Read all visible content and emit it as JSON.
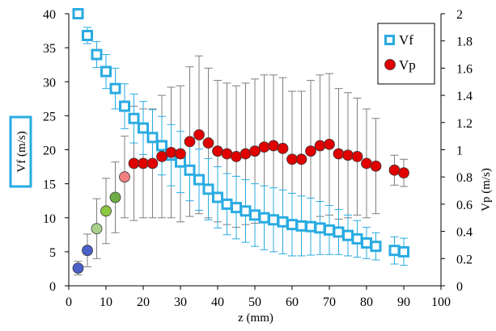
{
  "chart_data": {
    "type": "scatter",
    "title": "",
    "xlabel": "z (mm)",
    "ylabel_left": "Vf (m/s)",
    "ylabel_right": "Vp (m/s)",
    "xlim": [
      0,
      100
    ],
    "ylim_left": [
      0,
      40
    ],
    "ylim_right": [
      0,
      2
    ],
    "x_ticks": [
      0,
      10,
      20,
      30,
      40,
      50,
      60,
      70,
      80,
      90,
      100
    ],
    "y_left_ticks": [
      0,
      5,
      10,
      15,
      20,
      25,
      30,
      35,
      40
    ],
    "y_right_ticks": [
      "0",
      "0.2",
      "0.4",
      "0.6",
      "0.8",
      "1",
      "1.2",
      "1.4",
      "1.6",
      "1.8",
      "2"
    ],
    "grid": false,
    "legend_position": "top-right",
    "colors": {
      "vf": "#29abe2",
      "vp": "#e00000",
      "axis": "#000000",
      "ylabel_box": "#29abe2"
    },
    "series": [
      {
        "name": "Vf",
        "axis": "left",
        "marker": "square",
        "points": [
          {
            "x": 2.5,
            "y": 40.0,
            "err": 0.0
          },
          {
            "x": 5.0,
            "y": 36.8,
            "err": 1.2
          },
          {
            "x": 7.5,
            "y": 34.0,
            "err": 1.9
          },
          {
            "x": 10.0,
            "y": 31.5,
            "err": 2.5
          },
          {
            "x": 12.5,
            "y": 29.0,
            "err": 3.0
          },
          {
            "x": 15.0,
            "y": 26.4,
            "err": 3.3
          },
          {
            "x": 17.5,
            "y": 24.6,
            "err": 3.6
          },
          {
            "x": 20.0,
            "y": 23.2,
            "err": 3.9
          },
          {
            "x": 22.5,
            "y": 21.8,
            "err": 4.1
          },
          {
            "x": 25.0,
            "y": 20.6,
            "err": 4.3
          },
          {
            "x": 27.5,
            "y": 19.2,
            "err": 4.5
          },
          {
            "x": 30.0,
            "y": 18.2,
            "err": 4.5
          },
          {
            "x": 32.5,
            "y": 17.0,
            "err": 4.5
          },
          {
            "x": 35.0,
            "y": 15.6,
            "err": 4.5
          },
          {
            "x": 37.5,
            "y": 14.2,
            "err": 4.5
          },
          {
            "x": 40.0,
            "y": 13.0,
            "err": 4.5
          },
          {
            "x": 42.5,
            "y": 12.0,
            "err": 4.5
          },
          {
            "x": 45.0,
            "y": 11.5,
            "err": 4.6
          },
          {
            "x": 47.5,
            "y": 11.0,
            "err": 4.6
          },
          {
            "x": 50.0,
            "y": 10.4,
            "err": 4.6
          },
          {
            "x": 52.5,
            "y": 10.0,
            "err": 4.7
          },
          {
            "x": 55.0,
            "y": 9.7,
            "err": 4.7
          },
          {
            "x": 57.5,
            "y": 9.4,
            "err": 4.7
          },
          {
            "x": 60.0,
            "y": 9.0,
            "err": 4.6
          },
          {
            "x": 62.5,
            "y": 8.8,
            "err": 4.4
          },
          {
            "x": 65.0,
            "y": 8.7,
            "err": 4.2
          },
          {
            "x": 67.5,
            "y": 8.5,
            "err": 3.9
          },
          {
            "x": 70.0,
            "y": 8.2,
            "err": 3.6
          },
          {
            "x": 72.5,
            "y": 7.9,
            "err": 3.3
          },
          {
            "x": 75.0,
            "y": 7.4,
            "err": 3.0
          },
          {
            "x": 77.5,
            "y": 6.9,
            "err": 2.7
          },
          {
            "x": 80.0,
            "y": 6.3,
            "err": 2.3
          },
          {
            "x": 82.5,
            "y": 5.8,
            "err": 2.0
          },
          {
            "x": 87.5,
            "y": 5.2,
            "err": 2.0
          },
          {
            "x": 90.0,
            "y": 5.0,
            "err": 2.0
          }
        ]
      },
      {
        "name": "Vp",
        "axis": "right",
        "marker": "circle",
        "points": [
          {
            "x": 2.5,
            "y": 0.13,
            "err": 0.05,
            "color": "#4a5fc8"
          },
          {
            "x": 5.0,
            "y": 0.26,
            "err": 0.12,
            "color": "#4a5fc8"
          },
          {
            "x": 7.5,
            "y": 0.42,
            "err": 0.22,
            "color": "#a8d18d"
          },
          {
            "x": 10.0,
            "y": 0.55,
            "err": 0.24,
            "color": "#8dc63f"
          },
          {
            "x": 12.5,
            "y": 0.65,
            "err": 0.26,
            "color": "#70ad47"
          },
          {
            "x": 15.0,
            "y": 0.8,
            "err": 0.3,
            "color": "#f08080"
          },
          {
            "x": 17.5,
            "y": 0.9,
            "err": 0.42,
            "color": "#e00000"
          },
          {
            "x": 20.0,
            "y": 0.9,
            "err": 0.4,
            "color": "#e00000"
          },
          {
            "x": 22.5,
            "y": 0.9,
            "err": 0.4,
            "color": "#e00000"
          },
          {
            "x": 25.0,
            "y": 0.95,
            "err": 0.45,
            "color": "#e00000"
          },
          {
            "x": 27.5,
            "y": 0.98,
            "err": 0.48,
            "color": "#e00000"
          },
          {
            "x": 30.0,
            "y": 0.97,
            "err": 0.5,
            "color": "#e00000"
          },
          {
            "x": 32.5,
            "y": 1.06,
            "err": 0.55,
            "color": "#e00000"
          },
          {
            "x": 35.0,
            "y": 1.11,
            "err": 0.58,
            "color": "#e00000"
          },
          {
            "x": 37.5,
            "y": 1.05,
            "err": 0.55,
            "color": "#e00000"
          },
          {
            "x": 40.0,
            "y": 0.99,
            "err": 0.52,
            "color": "#e00000"
          },
          {
            "x": 42.5,
            "y": 0.97,
            "err": 0.52,
            "color": "#e00000"
          },
          {
            "x": 45.0,
            "y": 0.95,
            "err": 0.52,
            "color": "#e00000"
          },
          {
            "x": 47.5,
            "y": 0.97,
            "err": 0.52,
            "color": "#e00000"
          },
          {
            "x": 50.0,
            "y": 0.99,
            "err": 0.53,
            "color": "#e00000"
          },
          {
            "x": 52.5,
            "y": 1.02,
            "err": 0.53,
            "color": "#e00000"
          },
          {
            "x": 55.0,
            "y": 1.03,
            "err": 0.52,
            "color": "#e00000"
          },
          {
            "x": 57.5,
            "y": 1.01,
            "err": 0.52,
            "color": "#e00000"
          },
          {
            "x": 60.0,
            "y": 0.93,
            "err": 0.5,
            "color": "#e00000"
          },
          {
            "x": 62.5,
            "y": 0.93,
            "err": 0.5,
            "color": "#e00000"
          },
          {
            "x": 65.0,
            "y": 0.99,
            "err": 0.52,
            "color": "#e00000"
          },
          {
            "x": 67.5,
            "y": 1.03,
            "err": 0.52,
            "color": "#e00000"
          },
          {
            "x": 70.0,
            "y": 1.04,
            "err": 0.52,
            "color": "#e00000"
          },
          {
            "x": 72.5,
            "y": 0.97,
            "err": 0.48,
            "color": "#e00000"
          },
          {
            "x": 75.0,
            "y": 0.96,
            "err": 0.46,
            "color": "#e00000"
          },
          {
            "x": 77.5,
            "y": 0.95,
            "err": 0.43,
            "color": "#e00000"
          },
          {
            "x": 80.0,
            "y": 0.9,
            "err": 0.4,
            "color": "#e00000"
          },
          {
            "x": 82.5,
            "y": 0.88,
            "err": 0.35,
            "color": "#e00000"
          },
          {
            "x": 87.5,
            "y": 0.85,
            "err": 0.11,
            "color": "#e00000"
          },
          {
            "x": 90.0,
            "y": 0.83,
            "err": 0.1,
            "color": "#e00000"
          }
        ]
      }
    ]
  }
}
